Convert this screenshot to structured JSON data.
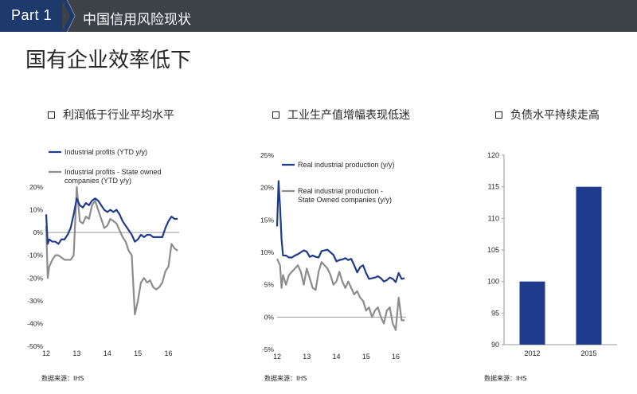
{
  "header": {
    "part_label": "Part  1",
    "section_title": "中国信用风险现状"
  },
  "page_title": "国有企业效率低下",
  "source_note": "数据来源：IHS",
  "panels": [
    {
      "title": "利润低于行业平均水平"
    },
    {
      "title": "工业生产值增幅表现低迷"
    },
    {
      "title": "负债水平持续走高"
    }
  ],
  "colors": {
    "navy": "#1f3b8c",
    "gray": "#8c8c8c",
    "bar": "#1f3b8c",
    "header_bg": "#3d4148",
    "tab_bg": "#1e3a6d"
  },
  "chart_data": [
    {
      "type": "line",
      "title": "",
      "ylim": [
        -50,
        20
      ],
      "yticks": [
        "20%",
        "10%",
        "0%",
        "-10%",
        "-20%",
        "-30%",
        "-40%",
        "-50%"
      ],
      "xticks": [
        "12",
        "13",
        "14",
        "15",
        "16"
      ],
      "series": [
        {
          "name": "Industrial profits  (YTD y/y)",
          "color": "#1f3b8c",
          "x": [
            2012.0,
            2012.05,
            2012.1,
            2012.2,
            2012.3,
            2012.4,
            2012.5,
            2012.6,
            2012.7,
            2012.8,
            2012.9,
            2013.0,
            2013.1,
            2013.2,
            2013.3,
            2013.4,
            2013.5,
            2013.6,
            2013.7,
            2013.8,
            2013.9,
            2014.0,
            2014.1,
            2014.2,
            2014.3,
            2014.4,
            2014.5,
            2014.6,
            2014.7,
            2014.8,
            2014.9,
            2015.0,
            2015.1,
            2015.2,
            2015.3,
            2015.4,
            2015.5,
            2015.6,
            2015.7,
            2015.8,
            2015.9,
            2016.0,
            2016.1,
            2016.2,
            2016.3
          ],
          "y": [
            8,
            -5,
            -3,
            -4,
            -4,
            -5,
            -3,
            -3,
            -1,
            2,
            8,
            15,
            12,
            11,
            13,
            12,
            14,
            15,
            14,
            12,
            10,
            9,
            10,
            9,
            10,
            8,
            5,
            3,
            1,
            -1,
            -4,
            -3,
            -1,
            -2,
            -1,
            -1,
            -2,
            -2,
            -2,
            -2,
            2,
            5,
            7,
            6,
            6
          ]
        },
        {
          "name": "Industrial profits - State owned companies (YTD y/y)",
          "color": "#8c8c8c",
          "x": [
            2012.0,
            2012.05,
            2012.1,
            2012.2,
            2012.3,
            2012.4,
            2012.5,
            2012.6,
            2012.7,
            2012.8,
            2012.9,
            2013.0,
            2013.1,
            2013.2,
            2013.3,
            2013.4,
            2013.5,
            2013.6,
            2013.7,
            2013.8,
            2013.9,
            2014.0,
            2014.1,
            2014.2,
            2014.3,
            2014.4,
            2014.5,
            2014.6,
            2014.7,
            2014.8,
            2014.9,
            2015.0,
            2015.1,
            2015.2,
            2015.3,
            2015.4,
            2015.5,
            2015.6,
            2015.7,
            2015.8,
            2015.9,
            2016.0,
            2016.1,
            2016.2,
            2016.3
          ],
          "y": [
            3,
            -20,
            -15,
            -12,
            -10,
            -10,
            -11,
            -12,
            -12,
            -12,
            -10,
            20,
            5,
            4,
            7,
            6,
            12,
            14,
            10,
            6,
            2,
            3,
            6,
            5,
            4,
            1,
            -2,
            -4,
            -8,
            -10,
            -36,
            -30,
            -22,
            -20,
            -22,
            -21,
            -24,
            -25,
            -24,
            -22,
            -17,
            -15,
            -5,
            -7,
            -8
          ]
        }
      ]
    },
    {
      "type": "line",
      "title": "",
      "ylim": [
        -5,
        25
      ],
      "yticks": [
        "25%",
        "20%",
        "15%",
        "10%",
        "5%",
        "0%",
        "-5%"
      ],
      "xticks": [
        "12",
        "13",
        "14",
        "15",
        "16"
      ],
      "series": [
        {
          "name": "Real industrial production (y/y)",
          "color": "#1f3b8c",
          "x": [
            2012.0,
            2012.05,
            2012.1,
            2012.15,
            2012.2,
            2012.3,
            2012.4,
            2012.5,
            2012.6,
            2012.7,
            2012.8,
            2012.9,
            2013.0,
            2013.1,
            2013.2,
            2013.3,
            2013.4,
            2013.5,
            2013.6,
            2013.7,
            2013.8,
            2013.9,
            2014.0,
            2014.1,
            2014.2,
            2014.3,
            2014.4,
            2014.5,
            2014.6,
            2014.7,
            2014.8,
            2014.9,
            2015.0,
            2015.1,
            2015.2,
            2015.3,
            2015.4,
            2015.5,
            2015.6,
            2015.7,
            2015.8,
            2015.9,
            2016.0,
            2016.1,
            2016.2,
            2016.3
          ],
          "y": [
            14,
            21,
            17,
            12,
            9.5,
            9.5,
            9.2,
            9.2,
            9.5,
            9.7,
            10,
            10.3,
            10.1,
            9.3,
            9.5,
            9.3,
            9.2,
            10.2,
            10.3,
            10.4,
            10,
            9.6,
            8.6,
            8.8,
            8.9,
            9.1,
            8.8,
            9,
            8,
            6.9,
            7.7,
            8,
            6.8,
            5.9,
            6,
            6.1,
            6.3,
            6,
            5.5,
            5.7,
            6.1,
            5.9,
            5.4,
            6.8,
            5.9,
            6.0
          ]
        },
        {
          "name": "Real industrial production - State Owned companies (y/y)",
          "color": "#8c8c8c",
          "x": [
            2012.0,
            2012.05,
            2012.1,
            2012.15,
            2012.2,
            2012.3,
            2012.4,
            2012.5,
            2012.6,
            2012.7,
            2012.8,
            2012.9,
            2013.0,
            2013.1,
            2013.2,
            2013.3,
            2013.4,
            2013.5,
            2013.6,
            2013.7,
            2013.8,
            2013.9,
            2014.0,
            2014.1,
            2014.2,
            2014.3,
            2014.4,
            2014.5,
            2014.6,
            2014.7,
            2014.8,
            2014.9,
            2015.0,
            2015.1,
            2015.2,
            2015.3,
            2015.4,
            2015.5,
            2015.6,
            2015.7,
            2015.8,
            2015.9,
            2016.0,
            2016.1,
            2016.2,
            2016.3
          ],
          "y": [
            9,
            8.5,
            8,
            4.5,
            6.5,
            5,
            6.5,
            7,
            7.5,
            8,
            7,
            5,
            7.5,
            6,
            4.5,
            4.2,
            7,
            8.5,
            8,
            7.5,
            6.5,
            5,
            5.5,
            7,
            5.5,
            4.5,
            5.5,
            4.5,
            3.5,
            4,
            3,
            2.5,
            1,
            1.5,
            0,
            1,
            1.5,
            0,
            -1,
            1,
            1.5,
            -1,
            -2,
            3,
            -0.5,
            -0.5
          ]
        }
      ]
    },
    {
      "type": "bar",
      "title": "",
      "categories": [
        "2012",
        "2015"
      ],
      "values": [
        100,
        115
      ],
      "ylim": [
        90,
        120
      ],
      "yticks": [
        "120",
        "115",
        "110",
        "105",
        "100",
        "95",
        "90"
      ]
    }
  ]
}
